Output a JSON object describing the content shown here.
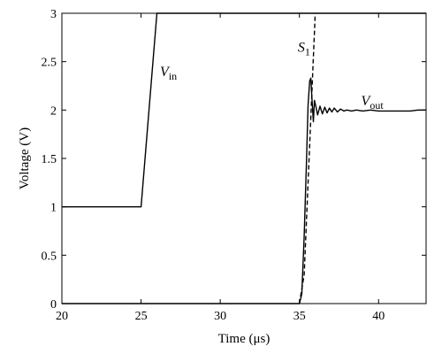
{
  "chart_data": {
    "type": "line",
    "title": "",
    "xlabel": "Time (μs)",
    "ylabel": "Voltage (V)",
    "xlim": [
      20,
      43
    ],
    "ylim": [
      0,
      3
    ],
    "xticks": [
      20,
      25,
      30,
      35,
      40
    ],
    "xtick_labels": [
      "20",
      "25",
      "30",
      "35",
      "40"
    ],
    "yticks": [
      0,
      0.5,
      1,
      1.5,
      2,
      2.5,
      3
    ],
    "ytick_labels": [
      "0",
      "0.5",
      "1",
      "1.5",
      "2",
      "2.5",
      "3"
    ],
    "grid": false,
    "legend": "none",
    "series": [
      {
        "name": "Vin",
        "style": "solid",
        "color": "#000000",
        "x": [
          20,
          25,
          26,
          43
        ],
        "y": [
          1,
          1,
          3,
          3
        ]
      },
      {
        "name": "Vout",
        "style": "solid",
        "color": "#000000",
        "x": [
          20,
          35,
          35.15,
          35.3,
          35.45,
          35.55,
          35.65,
          35.72,
          35.8,
          35.88,
          35.95,
          36.05,
          36.15,
          36.3,
          36.45,
          36.6,
          36.75,
          36.9,
          37.05,
          37.2,
          37.4,
          37.6,
          37.8,
          38.0,
          38.3,
          38.6,
          39.0,
          39.5,
          40.0,
          41.0,
          42.0,
          42.5,
          43
        ],
        "y": [
          0.0,
          0.0,
          0.1,
          0.7,
          1.5,
          2.05,
          2.3,
          2.33,
          2.1,
          1.88,
          2.1,
          2.03,
          1.95,
          2.04,
          1.96,
          2.03,
          1.97,
          2.02,
          1.98,
          2.02,
          1.98,
          2.01,
          1.99,
          2.0,
          1.99,
          2.0,
          1.99,
          2.0,
          1.99,
          1.99,
          1.99,
          2.0,
          2.0
        ]
      },
      {
        "name": "S1",
        "style": "dashed",
        "color": "#000000",
        "x": [
          35.0,
          35.3,
          36.0
        ],
        "y": [
          0.0,
          0.3,
          3.0
        ]
      }
    ],
    "annotations": [
      {
        "base": "V",
        "sub": "in",
        "x": 26.2,
        "y": 2.35
      },
      {
        "base": "S",
        "sub": "1",
        "x": 34.9,
        "y": 2.6
      },
      {
        "base": "V",
        "sub": "out",
        "x": 38.9,
        "y": 2.05
      }
    ]
  }
}
